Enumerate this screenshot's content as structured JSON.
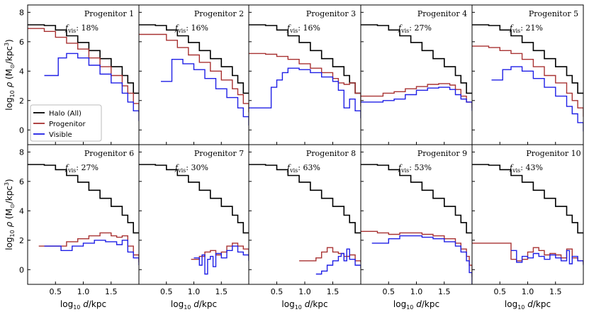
{
  "chart_data": {
    "type": "line",
    "layout": "2x5 grid of step-line density profile panels, shared axes",
    "xlabel": "log10 d/kpc",
    "ylabel": "log10 ρ (M⊙/kpc³)",
    "xlim": [
      0.0,
      2.0
    ],
    "ylim": [
      -1.0,
      8.5
    ],
    "xticks": [
      0.5,
      1.0,
      1.5
    ],
    "xtick_labels": [
      "0.5",
      "1.0",
      "1.5"
    ],
    "yticks": [
      0,
      2,
      4,
      6,
      8
    ],
    "ytick_labels": [
      "0",
      "2",
      "4",
      "6",
      "8"
    ],
    "legend": {
      "placement": "lower-left of first panel",
      "entries": [
        "Halo (All)",
        "Progenitor",
        "Visible"
      ]
    },
    "series_colors": {
      "halo": "#000000",
      "progenitor": "#a83232",
      "visible": "#1f1fe6"
    },
    "halo": {
      "name": "Halo (All)",
      "x": [
        0.0,
        0.3,
        0.5,
        0.7,
        0.9,
        1.1,
        1.3,
        1.5,
        1.7,
        1.8,
        1.9,
        2.0
      ],
      "y": [
        7.15,
        7.1,
        6.8,
        6.4,
        5.95,
        5.4,
        4.85,
        4.3,
        3.7,
        3.2,
        2.5,
        2.5
      ]
    },
    "panels": [
      {
        "title": "Progenitor 1",
        "fvis_value": "18%",
        "progenitor": {
          "x": [
            0.0,
            0.3,
            0.5,
            0.7,
            0.9,
            1.1,
            1.3,
            1.5,
            1.7,
            1.8,
            1.9,
            2.0
          ],
          "y": [
            6.9,
            6.7,
            6.3,
            5.9,
            5.5,
            4.9,
            4.3,
            3.7,
            3.0,
            2.5,
            1.8,
            1.2
          ]
        },
        "visible": {
          "x": [
            0.3,
            0.5,
            0.55,
            0.7,
            0.9,
            1.1,
            1.3,
            1.5,
            1.7,
            1.8,
            1.9,
            2.0
          ],
          "y": [
            3.7,
            3.7,
            4.9,
            5.2,
            4.9,
            4.4,
            3.8,
            3.2,
            2.5,
            1.9,
            1.3,
            0.6
          ]
        }
      },
      {
        "title": "Progenitor 2",
        "fvis_value": "16%",
        "progenitor": {
          "x": [
            0.0,
            0.3,
            0.5,
            0.7,
            0.9,
            1.1,
            1.3,
            1.5,
            1.7,
            1.8,
            1.9,
            2.0
          ],
          "y": [
            6.5,
            6.5,
            6.1,
            5.6,
            5.1,
            4.6,
            4.0,
            3.4,
            2.8,
            2.4,
            1.8,
            1.2
          ]
        },
        "visible": {
          "x": [
            0.4,
            0.55,
            0.6,
            0.8,
            1.0,
            1.2,
            1.4,
            1.6,
            1.8,
            1.9,
            2.0
          ],
          "y": [
            3.3,
            3.3,
            4.8,
            4.5,
            4.1,
            3.5,
            2.8,
            2.2,
            1.5,
            0.9,
            0.3
          ]
        }
      },
      {
        "title": "Progenitor 3",
        "fvis_value": "16%",
        "progenitor": {
          "x": [
            0.0,
            0.3,
            0.5,
            0.7,
            0.9,
            1.1,
            1.3,
            1.5,
            1.6,
            1.7,
            1.8,
            1.9,
            2.0
          ],
          "y": [
            5.2,
            5.15,
            5.0,
            4.8,
            4.5,
            4.2,
            3.9,
            3.5,
            3.2,
            3.1,
            3.2,
            2.5,
            1.6
          ]
        },
        "visible": {
          "x": [
            0.0,
            0.3,
            0.4,
            0.5,
            0.6,
            0.7,
            0.9,
            1.1,
            1.3,
            1.5,
            1.6,
            1.7,
            1.8,
            1.9,
            2.0
          ],
          "y": [
            1.5,
            1.5,
            2.9,
            3.4,
            3.9,
            4.2,
            4.1,
            3.9,
            3.6,
            3.3,
            2.7,
            1.5,
            2.1,
            1.3,
            0.8
          ]
        }
      },
      {
        "title": "Progenitor 4",
        "fvis_value": "27%",
        "progenitor": {
          "x": [
            0.0,
            0.2,
            0.4,
            0.6,
            0.8,
            1.0,
            1.2,
            1.4,
            1.6,
            1.7,
            1.8,
            1.9,
            2.0
          ],
          "y": [
            2.3,
            2.3,
            2.5,
            2.6,
            2.8,
            2.95,
            3.1,
            3.15,
            3.05,
            2.75,
            2.3,
            1.9,
            1.5
          ]
        },
        "visible": {
          "x": [
            0.0,
            0.2,
            0.4,
            0.6,
            0.8,
            1.0,
            1.2,
            1.4,
            1.6,
            1.7,
            1.8,
            1.9,
            2.0
          ],
          "y": [
            1.9,
            1.9,
            2.0,
            2.1,
            2.4,
            2.7,
            2.85,
            2.9,
            2.75,
            2.4,
            2.1,
            1.9,
            1.3
          ]
        }
      },
      {
        "title": "Progenitor 5",
        "fvis_value": "21%",
        "progenitor": {
          "x": [
            0.0,
            0.3,
            0.5,
            0.7,
            0.9,
            1.1,
            1.3,
            1.5,
            1.7,
            1.8,
            1.9,
            2.0
          ],
          "y": [
            5.7,
            5.6,
            5.4,
            5.2,
            4.8,
            4.3,
            3.7,
            3.2,
            2.5,
            2.0,
            1.5,
            0.9
          ]
        },
        "visible": {
          "x": [
            0.35,
            0.5,
            0.55,
            0.7,
            0.9,
            1.1,
            1.3,
            1.5,
            1.7,
            1.8,
            1.9,
            2.0
          ],
          "y": [
            3.4,
            3.4,
            4.1,
            4.3,
            4.0,
            3.5,
            2.9,
            2.3,
            1.6,
            1.1,
            0.5,
            -0.1
          ]
        }
      },
      {
        "title": "Progenitor 6",
        "fvis_value": "27%",
        "progenitor": {
          "x": [
            0.2,
            0.5,
            0.7,
            0.9,
            1.1,
            1.3,
            1.5,
            1.6,
            1.7,
            1.8,
            1.9,
            2.0
          ],
          "y": [
            1.6,
            1.6,
            1.9,
            2.1,
            2.3,
            2.5,
            2.3,
            2.2,
            2.3,
            1.6,
            1.0,
            0.5
          ]
        },
        "visible": {
          "x": [
            0.3,
            0.5,
            0.6,
            0.8,
            1.0,
            1.2,
            1.4,
            1.6,
            1.7,
            1.8,
            1.9,
            2.0
          ],
          "y": [
            1.6,
            1.6,
            1.3,
            1.6,
            1.8,
            2.0,
            1.9,
            1.7,
            2.0,
            1.2,
            0.8,
            0.3
          ]
        }
      },
      {
        "title": "Progenitor 7",
        "fvis_value": "30%",
        "progenitor": {
          "x": [
            0.95,
            1.1,
            1.2,
            1.3,
            1.4,
            1.5,
            1.6,
            1.7,
            1.8,
            1.9,
            2.0
          ],
          "y": [
            0.7,
            0.9,
            1.2,
            1.3,
            1.0,
            1.2,
            1.6,
            1.8,
            1.6,
            1.4,
            0.9
          ]
        },
        "visible": {
          "x": [
            1.0,
            1.1,
            1.15,
            1.2,
            1.25,
            1.3,
            1.35,
            1.4,
            1.5,
            1.6,
            1.7,
            1.8,
            1.9,
            2.0
          ],
          "y": [
            0.8,
            0.3,
            1.0,
            -0.3,
            0.7,
            0.9,
            0.2,
            1.1,
            0.8,
            1.3,
            1.6,
            1.2,
            1.0,
            0.6
          ]
        }
      },
      {
        "title": "Progenitor 8",
        "fvis_value": "63%",
        "progenitor": {
          "x": [
            0.9,
            1.0,
            1.1,
            1.2,
            1.3,
            1.4,
            1.5,
            1.6,
            1.7,
            1.8,
            1.9,
            2.0
          ],
          "y": [
            0.6,
            0.6,
            0.6,
            0.8,
            1.2,
            1.5,
            1.2,
            1.1,
            0.9,
            1.0,
            0.6,
            0.5
          ]
        },
        "visible": {
          "x": [
            1.2,
            1.3,
            1.4,
            1.5,
            1.6,
            1.65,
            1.7,
            1.75,
            1.8,
            1.9,
            2.0
          ],
          "y": [
            -0.3,
            -0.1,
            0.3,
            0.6,
            0.9,
            1.1,
            0.6,
            1.4,
            0.7,
            0.3,
            0.1
          ]
        }
      },
      {
        "title": "Progenitor 9",
        "fvis_value": "53%",
        "progenitor": {
          "x": [
            0.0,
            0.3,
            0.5,
            0.7,
            0.9,
            1.1,
            1.3,
            1.5,
            1.7,
            1.8,
            1.9,
            1.95,
            2.0
          ],
          "y": [
            2.6,
            2.5,
            2.4,
            2.5,
            2.5,
            2.4,
            2.3,
            2.1,
            1.8,
            1.4,
            0.9,
            0.3,
            -0.5
          ]
        },
        "visible": {
          "x": [
            0.2,
            0.4,
            0.5,
            0.7,
            0.9,
            1.1,
            1.3,
            1.5,
            1.7,
            1.8,
            1.9,
            1.95,
            2.0
          ],
          "y": [
            1.8,
            1.8,
            2.1,
            2.3,
            2.3,
            2.2,
            2.1,
            1.9,
            1.6,
            1.2,
            0.6,
            -0.2,
            -1.0
          ]
        }
      },
      {
        "title": "Progenitor 10",
        "fvis_value": "43%",
        "progenitor": {
          "x": [
            0.0,
            0.3,
            0.7,
            0.8,
            0.9,
            1.0,
            1.1,
            1.2,
            1.3,
            1.4,
            1.5,
            1.6,
            1.7,
            1.8,
            1.9,
            2.0
          ],
          "y": [
            1.8,
            1.8,
            0.7,
            0.6,
            0.7,
            1.2,
            1.5,
            1.3,
            1.0,
            1.1,
            1.0,
            0.8,
            1.4,
            0.8,
            0.6,
            0.4
          ]
        },
        "visible": {
          "x": [
            0.7,
            0.8,
            0.9,
            1.0,
            1.1,
            1.2,
            1.3,
            1.4,
            1.5,
            1.6,
            1.7,
            1.75,
            1.8,
            1.9,
            2.0
          ],
          "y": [
            1.3,
            0.5,
            0.9,
            0.8,
            1.1,
            0.9,
            0.7,
            1.0,
            0.8,
            0.6,
            1.3,
            0.4,
            0.9,
            0.6,
            0.3
          ]
        }
      }
    ]
  }
}
